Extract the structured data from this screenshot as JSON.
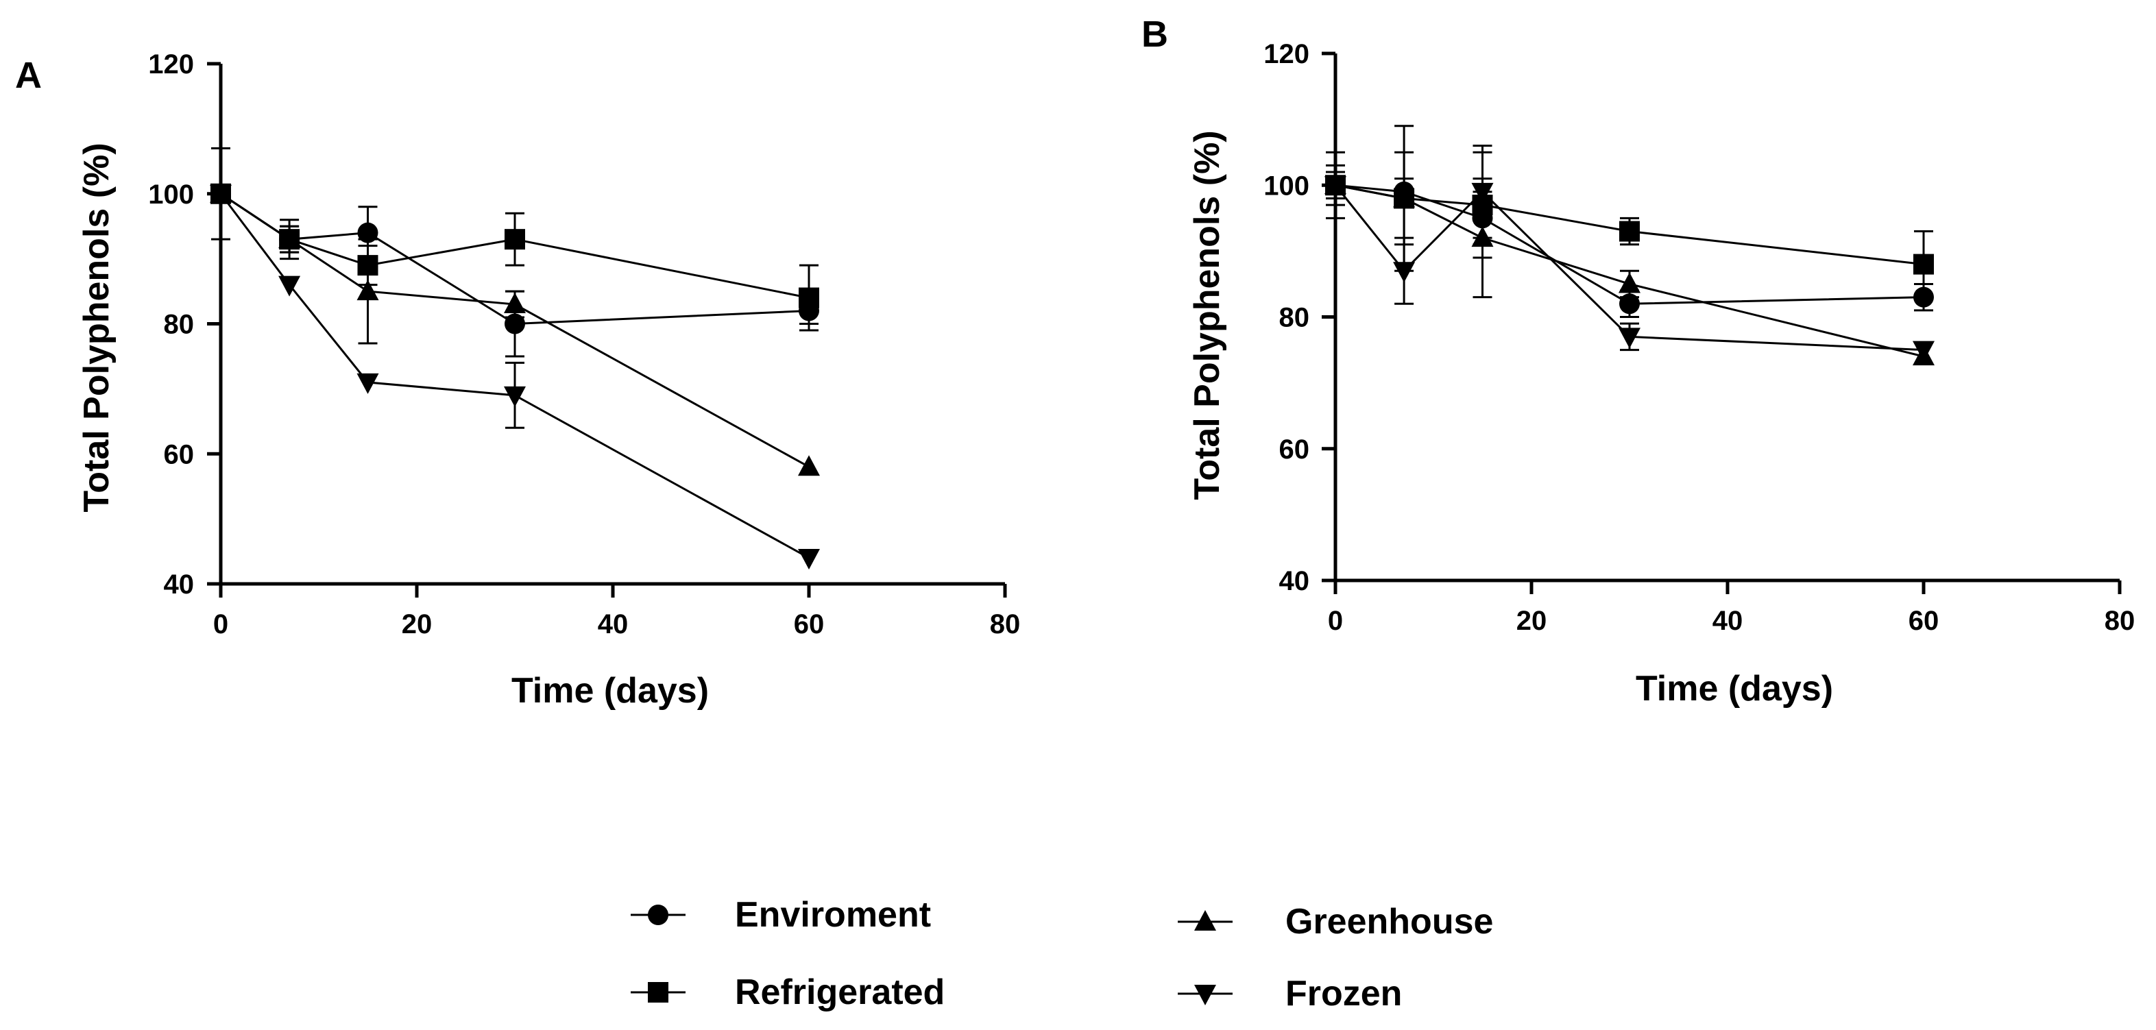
{
  "chart_data": [
    {
      "panel": "A",
      "type": "line",
      "xlabel": "Time (days)",
      "ylabel": "Total Polyphenols (%)",
      "xlim": [
        0,
        80
      ],
      "ylim": [
        40,
        120
      ],
      "xticks": [
        "0",
        "20",
        "40",
        "60",
        "80"
      ],
      "yticks": [
        "40",
        "60",
        "80",
        "100",
        "120"
      ],
      "grid": false,
      "x": [
        0,
        7,
        15,
        30,
        60
      ],
      "series": [
        {
          "name": "Enviroment",
          "marker": "circle",
          "values": [
            100,
            93,
            94,
            80,
            82
          ],
          "errors": [
            0,
            2,
            4,
            5,
            2
          ]
        },
        {
          "name": "Refrigerated",
          "marker": "square",
          "values": [
            100,
            93,
            89,
            93,
            84
          ],
          "errors": [
            7,
            2,
            3,
            4,
            5
          ]
        },
        {
          "name": "Greenhouse",
          "marker": "triangle-up",
          "values": [
            100,
            93,
            85,
            83,
            58
          ],
          "errors": [
            0,
            3,
            8,
            2,
            0
          ]
        },
        {
          "name": "Frozen",
          "marker": "triangle-down",
          "values": [
            100,
            86,
            71,
            69,
            44
          ],
          "errors": [
            0,
            0,
            0,
            5,
            0
          ]
        }
      ]
    },
    {
      "panel": "B",
      "type": "line",
      "xlabel": "Time (days)",
      "ylabel": "Total Polyphenols (%)",
      "xlim": [
        0,
        80
      ],
      "ylim": [
        40,
        120
      ],
      "xticks": [
        "0",
        "20",
        "40",
        "60",
        "80"
      ],
      "yticks": [
        "40",
        "60",
        "80",
        "100",
        "120"
      ],
      "grid": false,
      "x": [
        0,
        7,
        15,
        30,
        60
      ],
      "series": [
        {
          "name": "Enviroment",
          "marker": "circle",
          "values": [
            100,
            99,
            95,
            82,
            83
          ],
          "errors": [
            3,
            2,
            4,
            2,
            2
          ]
        },
        {
          "name": "Refrigerated",
          "marker": "square",
          "values": [
            100,
            98,
            97,
            93,
            88
          ],
          "errors": [
            5,
            7,
            8,
            2,
            5
          ]
        },
        {
          "name": "Greenhouse",
          "marker": "triangle-up",
          "values": [
            100,
            98,
            92,
            85,
            74
          ],
          "errors": [
            2,
            11,
            9,
            2,
            0
          ]
        },
        {
          "name": "Frozen",
          "marker": "triangle-down",
          "values": [
            100,
            87,
            99,
            77,
            75
          ],
          "errors": [
            0,
            5,
            7,
            2,
            0
          ]
        }
      ]
    }
  ],
  "legend": {
    "placement": "bottom",
    "entries": [
      {
        "label": "Enviroment",
        "marker": "circle"
      },
      {
        "label": "Refrigerated",
        "marker": "square"
      },
      {
        "label": "Greenhouse",
        "marker": "triangle-up"
      },
      {
        "label": "Frozen",
        "marker": "triangle-down"
      }
    ]
  }
}
